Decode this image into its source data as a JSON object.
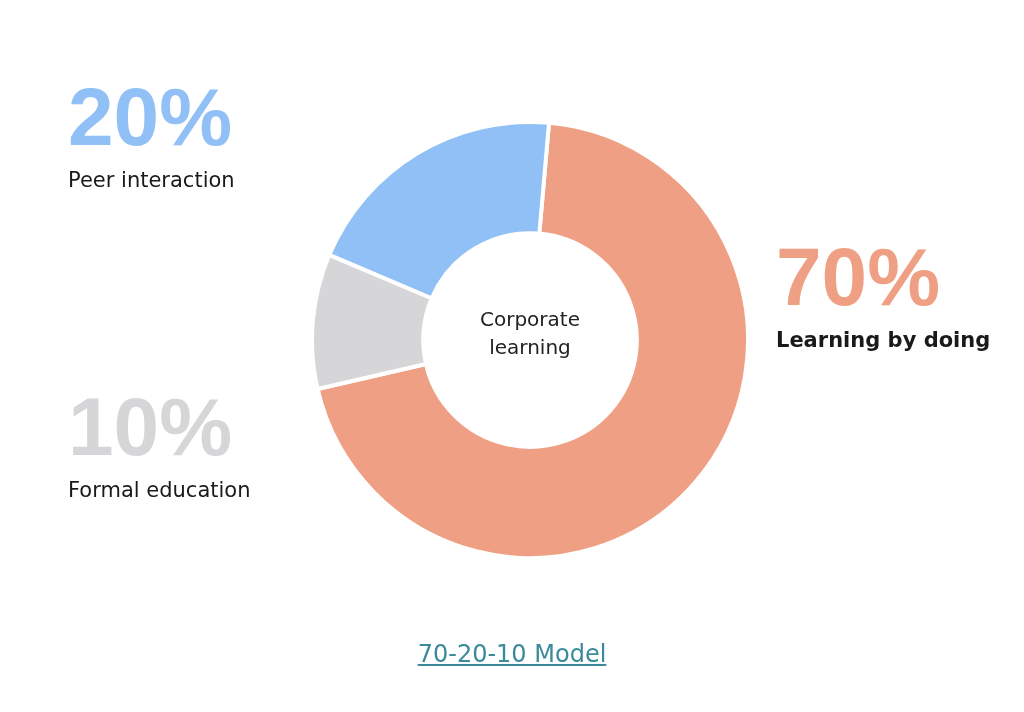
{
  "chart_data": {
    "type": "donut",
    "categories": [
      "Learning by doing",
      "Formal education",
      "Peer interaction"
    ],
    "values": [
      70,
      10,
      20
    ],
    "colors": [
      "#efa084",
      "#d6d6d8",
      "#90c0f5"
    ],
    "data_labels": true,
    "value_labels": [
      "70%",
      "10%",
      "20%"
    ],
    "legend": false,
    "annotations": [
      "Corporate learning",
      "70-20-10 Model"
    ]
  }
}
